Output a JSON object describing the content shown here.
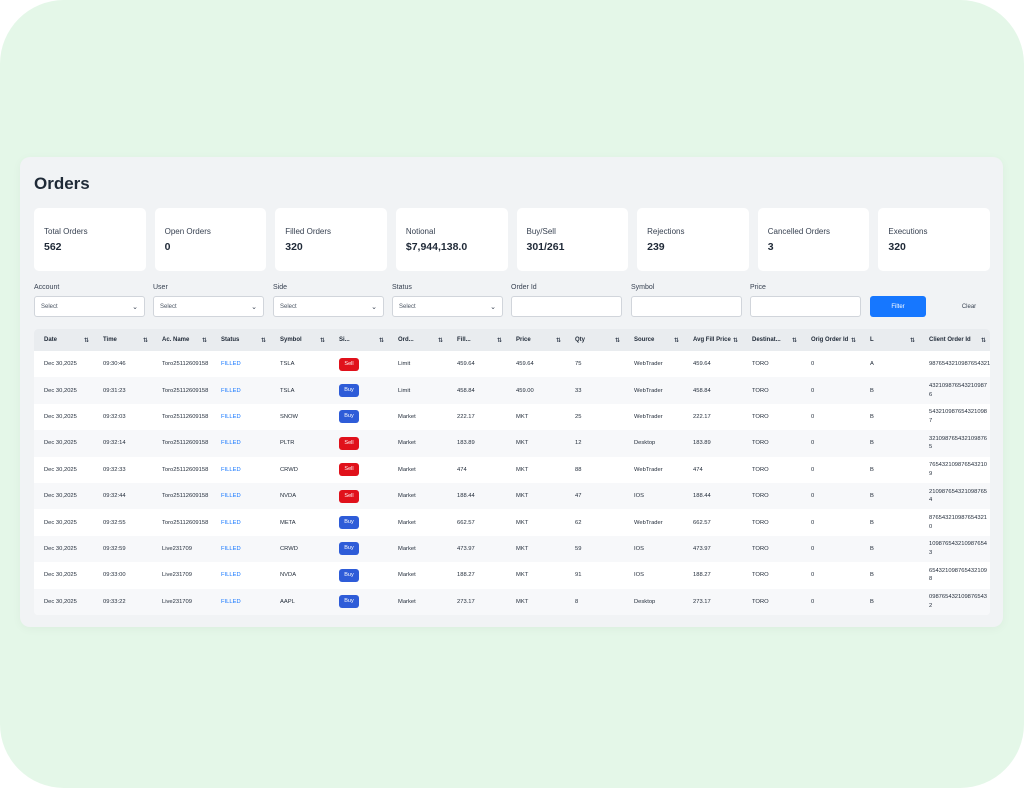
{
  "page": {
    "title": "Orders"
  },
  "stats": [
    {
      "label": "Total Orders",
      "value": "562"
    },
    {
      "label": "Open Orders",
      "value": "0"
    },
    {
      "label": "Filled Orders",
      "value": "320"
    },
    {
      "label": "Notional",
      "value": "$7,944,138.0"
    },
    {
      "label": "Buy/Sell",
      "value": "301/261"
    },
    {
      "label": "Rejections",
      "value": "239"
    },
    {
      "label": "Cancelled Orders",
      "value": "3"
    },
    {
      "label": "Executions",
      "value": "320"
    }
  ],
  "filters": {
    "account": {
      "label": "Account",
      "value": "Select"
    },
    "user": {
      "label": "User",
      "value": "Select"
    },
    "side": {
      "label": "Side",
      "value": "Select"
    },
    "status": {
      "label": "Status",
      "value": "Select"
    },
    "order_id": {
      "label": "Order Id",
      "value": ""
    },
    "symbol": {
      "label": "Symbol",
      "value": ""
    },
    "price": {
      "label": "Price",
      "value": ""
    },
    "filter_button": "Filter",
    "clear_button": "Clear"
  },
  "table": {
    "columns": [
      "Date",
      "Time",
      "Ac. Name",
      "Status",
      "Symbol",
      "Si...",
      "Ord...",
      "Fill...",
      "Price",
      "Qty",
      "Source",
      "Avg Fill Price",
      "Destinat...",
      "Orig Order Id",
      "L",
      "Client Order Id"
    ],
    "rows": [
      [
        "Dec 30,2025",
        "09:30:46",
        "Toro25112609158",
        "FILLED",
        "TSLA",
        "Sell",
        "Limit",
        "459.64",
        "459.64",
        "75",
        "WebTrader",
        "459.64",
        "TORO",
        "0",
        "A",
        "9876543210987654321"
      ],
      [
        "Dec 30,2025",
        "09:31:23",
        "Toro25112609158",
        "FILLED",
        "TSLA",
        "Buy",
        "Limit",
        "458.84",
        "459.00",
        "33",
        "WebTrader",
        "458.84",
        "TORO",
        "0",
        "B",
        "432109876543210987 6"
      ],
      [
        "Dec 30,2025",
        "09:32:03",
        "Toro25112609158",
        "FILLED",
        "SNOW",
        "Buy",
        "Market",
        "222.17",
        "MKT",
        "25",
        "WebTrader",
        "222.17",
        "TORO",
        "0",
        "B",
        "543210987654321098 7"
      ],
      [
        "Dec 30,2025",
        "09:32:14",
        "Toro25112609158",
        "FILLED",
        "PLTR",
        "Sell",
        "Market",
        "183.89",
        "MKT",
        "12",
        "Desktop",
        "183.89",
        "TORO",
        "0",
        "B",
        "321098765432109876 5"
      ],
      [
        "Dec 30,2025",
        "09:32:33",
        "Toro25112609158",
        "FILLED",
        "CRWD",
        "Sell",
        "Market",
        "474",
        "MKT",
        "88",
        "WebTrader",
        "474",
        "TORO",
        "0",
        "B",
        "765432109876543210 9"
      ],
      [
        "Dec 30,2025",
        "09:32:44",
        "Toro25112609158",
        "FILLED",
        "NVDA",
        "Sell",
        "Market",
        "188.44",
        "MKT",
        "47",
        "IOS",
        "188.44",
        "TORO",
        "0",
        "B",
        "210987654321098765 4"
      ],
      [
        "Dec 30,2025",
        "09:32:55",
        "Toro25112609158",
        "FILLED",
        "META",
        "Buy",
        "Market",
        "662.57",
        "MKT",
        "62",
        "WebTrader",
        "662.57",
        "TORO",
        "0",
        "B",
        "876543210987654321 0"
      ],
      [
        "Dec 30,2025",
        "09:32:59",
        "Live231709",
        "FILLED",
        "CRWD",
        "Buy",
        "Market",
        "473.97",
        "MKT",
        "59",
        "IOS",
        "473.97",
        "TORO",
        "0",
        "B",
        "109876543210987654 3"
      ],
      [
        "Dec 30,2025",
        "09:33:00",
        "Live231709",
        "FILLED",
        "NVDA",
        "Buy",
        "Market",
        "188.27",
        "MKT",
        "91",
        "IOS",
        "188.27",
        "TORO",
        "0",
        "B",
        "654321098765432109 8"
      ],
      [
        "Dec 30,2025",
        "09:33:22",
        "Live231709",
        "FILLED",
        "AAPL",
        "Buy",
        "Market",
        "273.17",
        "MKT",
        "8",
        "Desktop",
        "273.17",
        "TORO",
        "0",
        "B",
        "098765432109876543 2"
      ]
    ]
  },
  "colors": {
    "primary": "#1677ff",
    "sell": "#e0111b",
    "buy": "#2e5cd8",
    "background": "#e4f7e8"
  }
}
